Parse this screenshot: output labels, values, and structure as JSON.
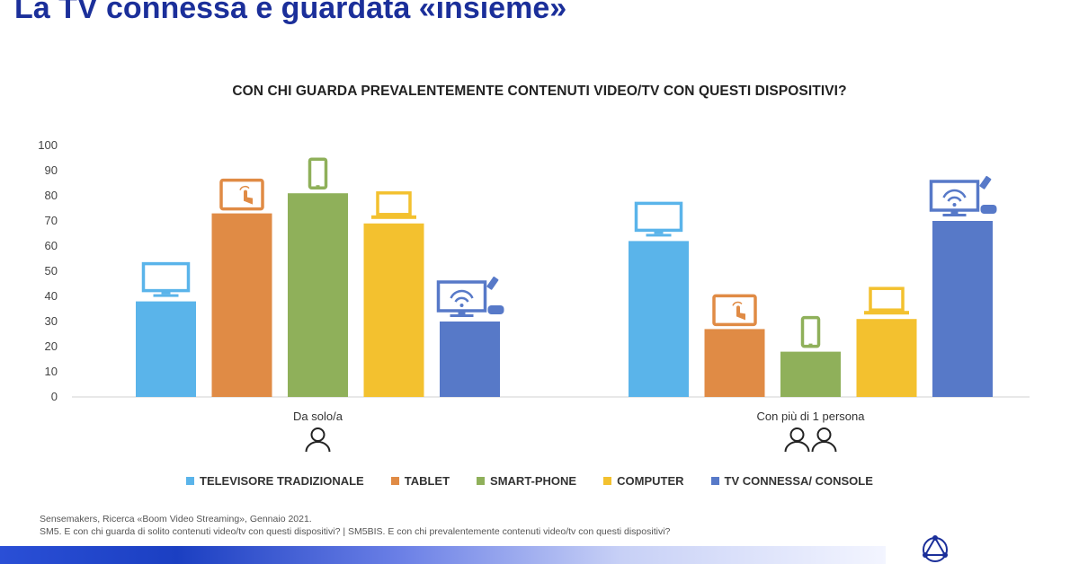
{
  "slide": {
    "title": "La TV connessa è guardata «insieme»",
    "question": "CON CHI GUARDA PREVALENTEMENTE CONTENUTI VIDEO/TV CON QUESTI DISPOSITIVI?",
    "source_line1": "Sensemakers, Ricerca «Boom Video Streaming», Gennaio 2021.",
    "source_line2": "SM5. E con chi guarda di solito contenuti video/tv con questi dispositivi? | SM5BIS. E con chi prevalentemente contenuti video/tv con questi dispositivi?"
  },
  "chart_data": {
    "type": "bar",
    "title": "CON CHI GUARDA PREVALENTEMENTE CONTENUTI VIDEO/TV CON QUESTI DISPOSITIVI?",
    "categories": [
      "Da solo/a",
      "Con più di 1 persona"
    ],
    "ylim": [
      0,
      100
    ],
    "yticks": [
      0,
      10,
      20,
      30,
      40,
      50,
      60,
      70,
      80,
      90,
      100
    ],
    "grid": false,
    "legend_position": "bottom",
    "series": [
      {
        "name": "TELEVISORE TRADIZIONALE",
        "color": "#5ab4ea",
        "icon": "tv-icon",
        "values": [
          38,
          62
        ]
      },
      {
        "name": "TABLET",
        "color": "#e08b45",
        "icon": "tablet-icon",
        "values": [
          73,
          27
        ]
      },
      {
        "name": "SMART-PHONE",
        "color": "#8fb05a",
        "icon": "smartphone-icon",
        "values": [
          81,
          18
        ]
      },
      {
        "name": "COMPUTER",
        "color": "#f3c12f",
        "icon": "laptop-icon",
        "values": [
          69,
          31
        ]
      },
      {
        "name": "TV CONNESSA/ CONSOLE",
        "color": "#5779c8",
        "icon": "smart-tv-console-icon",
        "values": [
          30,
          70
        ]
      }
    ],
    "group_icons": [
      "person-icon",
      "two-persons-icon"
    ]
  }
}
